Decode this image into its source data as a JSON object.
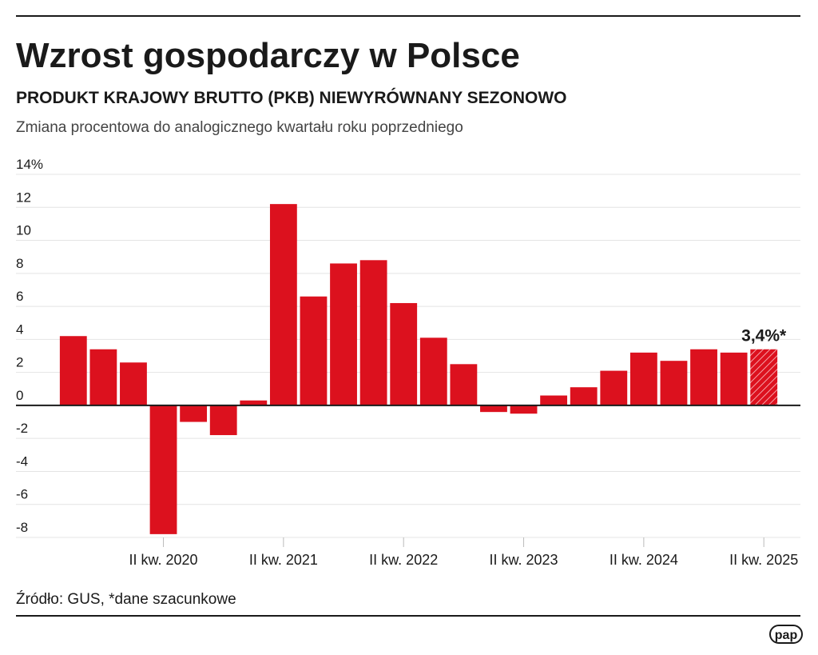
{
  "chart_data": {
    "type": "bar",
    "title": "Wzrost gospodarczy w Polsce",
    "subtitle": "PRODUKT KRAJOWY BRUTTO (PKB) NIEWYRÓWNANY SEZONOWO",
    "description": "Zmiana procentowa do analogicznego kwartału roku poprzedniego",
    "source": "Źródło: GUS, *dane szacunkowe",
    "logo": "pap",
    "categories": [
      null,
      null,
      null,
      "II kw. 2020",
      null,
      null,
      null,
      "II kw. 2021",
      null,
      null,
      null,
      "II kw. 2022",
      null,
      null,
      null,
      "II kw. 2023",
      null,
      null,
      null,
      "II kw. 2024",
      null,
      null,
      null,
      "II kw. 2025"
    ],
    "values": [
      4.2,
      3.4,
      2.6,
      -7.8,
      -1.0,
      -1.8,
      0.3,
      12.2,
      6.6,
      8.6,
      8.8,
      6.2,
      4.1,
      2.5,
      -0.4,
      -0.5,
      0.6,
      1.1,
      2.1,
      3.2,
      2.7,
      3.4,
      3.2,
      3.4
    ],
    "value_labels": [
      null,
      null,
      null,
      null,
      null,
      null,
      null,
      null,
      null,
      null,
      null,
      null,
      null,
      null,
      null,
      null,
      null,
      null,
      null,
      null,
      null,
      null,
      null,
      "3,4%*"
    ],
    "color": "#dc111e",
    "last_bar_hatched": true,
    "ylim": [
      -8,
      14
    ],
    "yticks": [
      {
        "value": 14,
        "label": "14%"
      },
      12,
      10,
      8,
      6,
      4,
      2,
      0,
      -2,
      -4,
      -6,
      -8
    ],
    "grid": true
  }
}
